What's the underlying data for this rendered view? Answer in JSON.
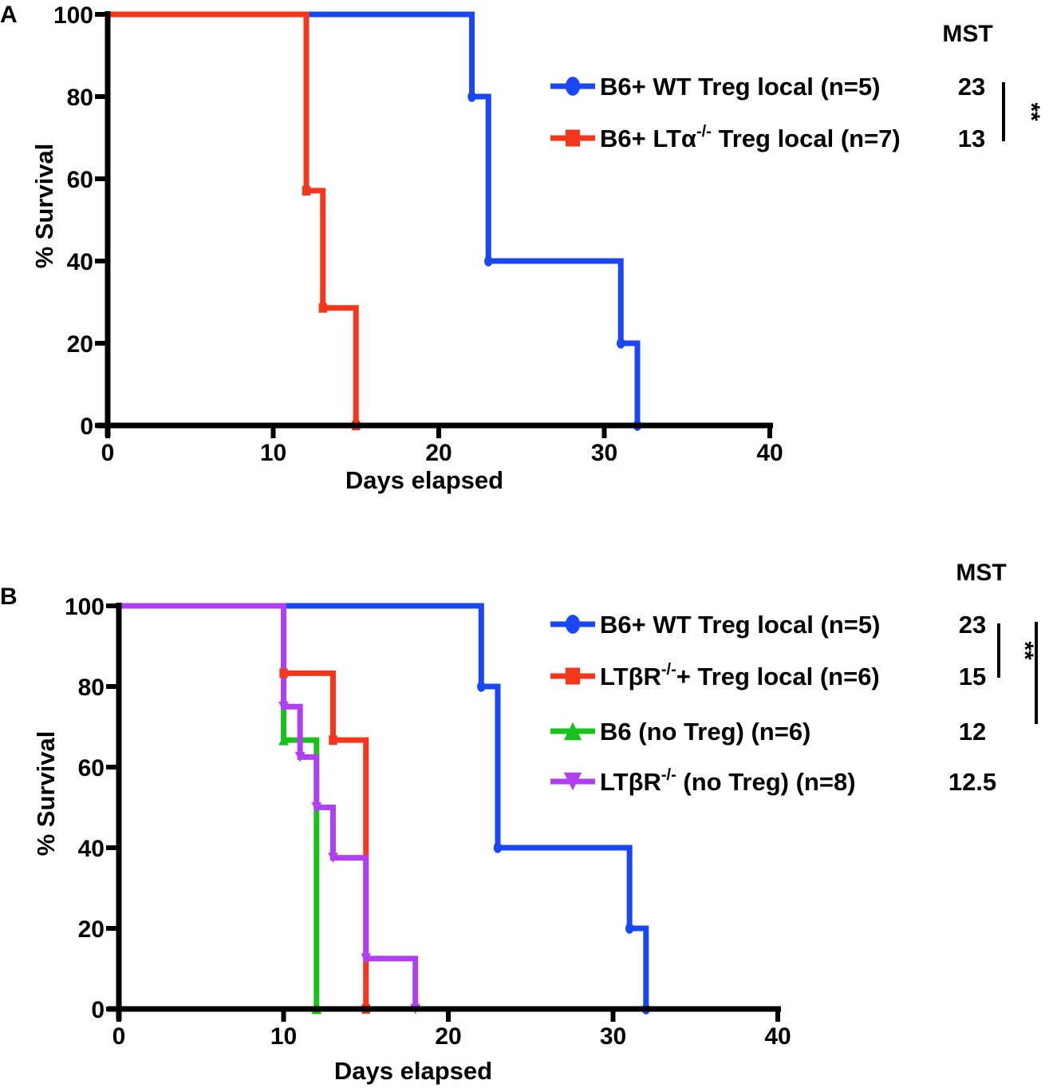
{
  "colors": {
    "blue": "#1a47f5",
    "red": "#f4361c",
    "green": "#18c21a",
    "purple": "#b13ff2",
    "axis": "#000000"
  },
  "chart_data": [
    {
      "panel": "A",
      "type": "line",
      "step": true,
      "xlabel": "Days elapsed",
      "ylabel": "% Survival",
      "xlim": [
        0,
        40
      ],
      "ylim": [
        0,
        100
      ],
      "xticks": [
        "0",
        "10",
        "20",
        "30",
        "40"
      ],
      "yticks": [
        "0",
        "20",
        "40",
        "60",
        "80",
        "100"
      ],
      "legend_header": "MST",
      "series": [
        {
          "name_parts": [
            "B6+ WT Treg local (n=5)"
          ],
          "mst": "23",
          "color_key": "blue",
          "marker": "circle",
          "x": [
            0,
            22,
            23,
            31,
            32
          ],
          "y": [
            100,
            80,
            40,
            20,
            0
          ]
        },
        {
          "name_parts": [
            "B6+ LTα",
            "-/-",
            " Treg local (n=7)"
          ],
          "mst": "13",
          "color_key": "red",
          "marker": "square",
          "x": [
            0,
            12,
            13,
            15
          ],
          "y": [
            100,
            57.1,
            28.6,
            0
          ]
        }
      ],
      "significance": [
        {
          "label": "**",
          "from_series": 0,
          "to_series": 1
        }
      ]
    },
    {
      "panel": "B",
      "type": "line",
      "step": true,
      "xlabel": "Days elapsed",
      "ylabel": "% Survival",
      "xlim": [
        0,
        40
      ],
      "ylim": [
        0,
        100
      ],
      "xticks": [
        "0",
        "10",
        "20",
        "30",
        "40"
      ],
      "yticks": [
        "0",
        "20",
        "40",
        "60",
        "80",
        "100"
      ],
      "legend_header": "MST",
      "series": [
        {
          "name_parts": [
            "B6+ WT Treg local (n=5)"
          ],
          "mst": "23",
          "color_key": "blue",
          "marker": "circle",
          "x": [
            0,
            22,
            23,
            31,
            32
          ],
          "y": [
            100,
            80,
            40,
            20,
            0
          ]
        },
        {
          "name_parts": [
            "LTβR",
            "-/-",
            "+ Treg local (n=6)"
          ],
          "mst": "15",
          "color_key": "red",
          "marker": "square",
          "x": [
            0,
            10,
            13,
            15
          ],
          "y": [
            100,
            83.3,
            66.7,
            0
          ]
        },
        {
          "name_parts": [
            "B6 (no Treg) (n=6)"
          ],
          "mst": "12",
          "color_key": "green",
          "marker": "triangle-up",
          "x": [
            0,
            10,
            12
          ],
          "y": [
            100,
            66.7,
            0
          ]
        },
        {
          "name_parts": [
            "LTβR",
            "-/-",
            " (no Treg) (n=8)"
          ],
          "mst": "12.5",
          "color_key": "purple",
          "marker": "triangle-down",
          "x": [
            0,
            10,
            11,
            12,
            13,
            15,
            18
          ],
          "y": [
            100,
            75,
            62.5,
            50,
            37.5,
            12.5,
            0
          ]
        }
      ],
      "significance": [
        {
          "label": "**",
          "from_series": 0,
          "to_series": 1
        },
        {
          "label": "**",
          "from_series": 0,
          "to_series": 2
        }
      ]
    }
  ]
}
